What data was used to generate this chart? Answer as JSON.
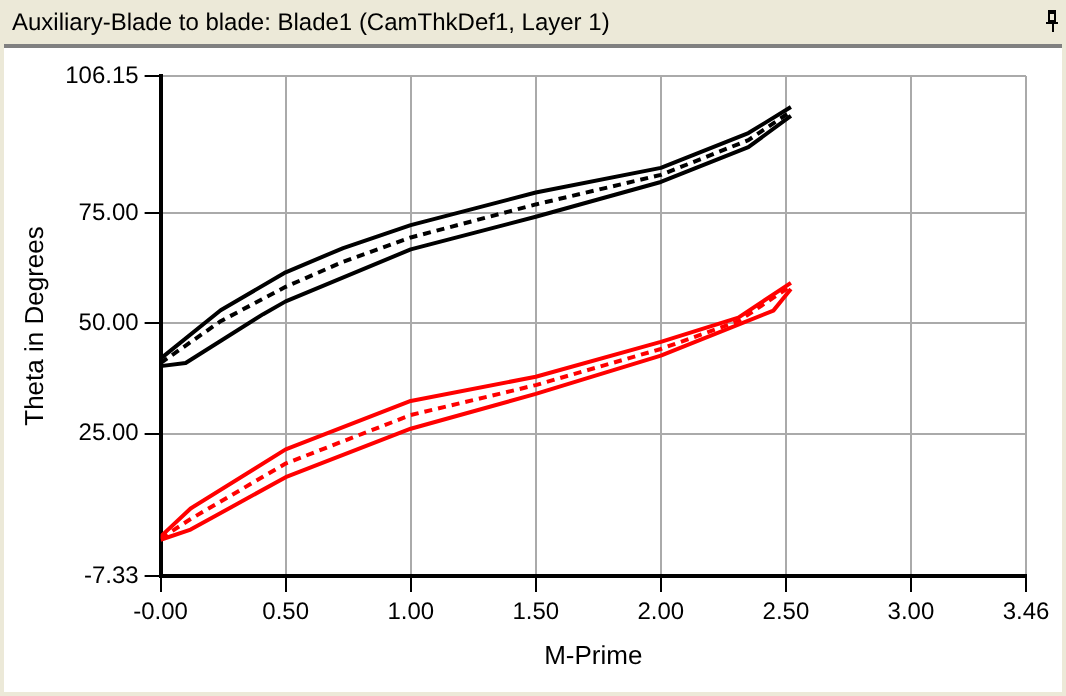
{
  "chart_data": {
    "type": "line",
    "title": "Auxiliary-Blade to blade: Blade1 (CamThkDef1, Layer 1)",
    "xlabel": "M-Prime",
    "ylabel": "Theta in Degrees",
    "xlim": [
      0,
      3.46
    ],
    "xticks": [
      {
        "value": 0,
        "label": "-0.00"
      },
      {
        "value": 0.5,
        "label": "0.50"
      },
      {
        "value": 1,
        "label": "1.00"
      },
      {
        "value": 1.5,
        "label": "1.50"
      },
      {
        "value": 2,
        "label": "2.00"
      },
      {
        "value": 2.5,
        "label": "2.50"
      },
      {
        "value": 3,
        "label": "3.00"
      },
      {
        "value": 3.46,
        "label": "3.46"
      }
    ],
    "ylim": [
      -7.33,
      106.15
    ],
    "yticks": [
      {
        "value": -7.33,
        "label": "-7.33"
      },
      {
        "value": 25,
        "label": "25.00"
      },
      {
        "value": 50,
        "label": "50.00"
      },
      {
        "value": 75,
        "label": "75.00"
      },
      {
        "value": 106.15,
        "label": "106.15"
      }
    ],
    "grid": true,
    "legend": false,
    "marker": "none",
    "series": [
      {
        "color": "#000000",
        "line_style": "solid",
        "x": [
          0,
          0.24,
          0.5,
          0.73,
          1,
          1.5,
          2,
          2.35,
          2.52
        ],
        "values": [
          42,
          53,
          61.6,
          67.1,
          72.3,
          79.7,
          85.3,
          93.2,
          99.1
        ]
      },
      {
        "color": "#000000",
        "line_style": "dashed",
        "x": [
          0,
          0.24,
          0.5,
          0.73,
          1,
          1.5,
          2,
          2.35,
          2.52
        ],
        "values": [
          41,
          50.5,
          58.3,
          64,
          69.5,
          77,
          83.7,
          91.6,
          98.1
        ]
      },
      {
        "color": "#000000",
        "line_style": "solid",
        "x": [
          0,
          0.1,
          0.41,
          0.5,
          1,
          1.5,
          2,
          2.35,
          2.52
        ],
        "values": [
          40.3,
          41,
          52.1,
          55,
          66.8,
          74.2,
          82.1,
          90,
          97.1
        ]
      },
      {
        "color": "#ff0000",
        "line_style": "solid",
        "x": [
          0,
          0.12,
          0.5,
          1,
          1.5,
          2,
          2.31,
          2.52
        ],
        "values": [
          1.6,
          8,
          21.4,
          32.4,
          37.9,
          45.8,
          51.3,
          59.2
        ]
      },
      {
        "color": "#ff0000",
        "line_style": "dashed",
        "x": [
          0,
          0.12,
          0.5,
          1,
          1.5,
          2,
          2.31,
          2.52
        ],
        "values": [
          1.2,
          5.6,
          18.2,
          29.2,
          36,
          44.2,
          50.5,
          58.5
        ]
      },
      {
        "color": "#ff0000",
        "line_style": "solid",
        "x": [
          0,
          0.12,
          0.5,
          1,
          1.5,
          2,
          2.45,
          2.52
        ],
        "values": [
          0.9,
          3.2,
          15.1,
          26.1,
          34,
          42.7,
          52.9,
          57.8
        ]
      }
    ]
  }
}
